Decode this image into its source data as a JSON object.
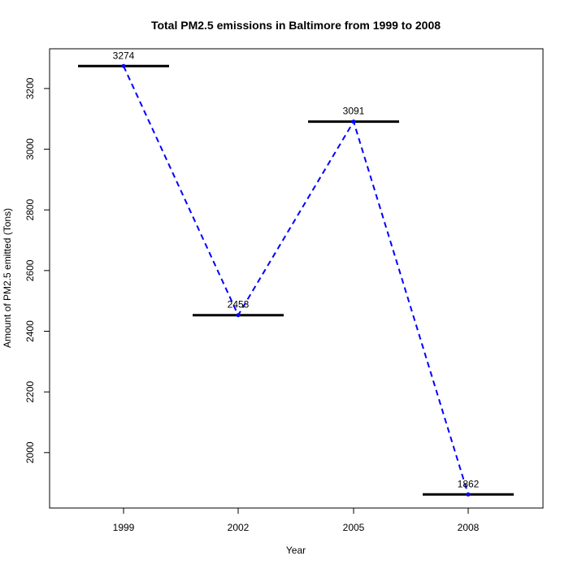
{
  "chart_data": {
    "type": "line",
    "title": "Total PM2.5 emissions in Baltimore from 1999 to 2008",
    "xlabel": "Year",
    "ylabel": "Amount of PM2.5 emitted (Tons)",
    "categories": [
      "1999",
      "2002",
      "2005",
      "2008"
    ],
    "values": [
      3274,
      2453,
      3091,
      1862
    ],
    "value_labels": [
      "3274",
      "2453",
      "3091",
      "1862"
    ],
    "ylim": [
      1800,
      3300
    ],
    "yticks": [
      2000,
      2200,
      2400,
      2600,
      2800,
      3000,
      3200
    ],
    "ytick_labels": [
      "2000",
      "2200",
      "2400",
      "2600",
      "2800",
      "3000",
      "3200"
    ],
    "grid": false,
    "line_style": "dashed",
    "colors": {
      "line": "#0000ff",
      "points": "#0000ff",
      "segments": "#000000",
      "text": "#000000"
    }
  }
}
